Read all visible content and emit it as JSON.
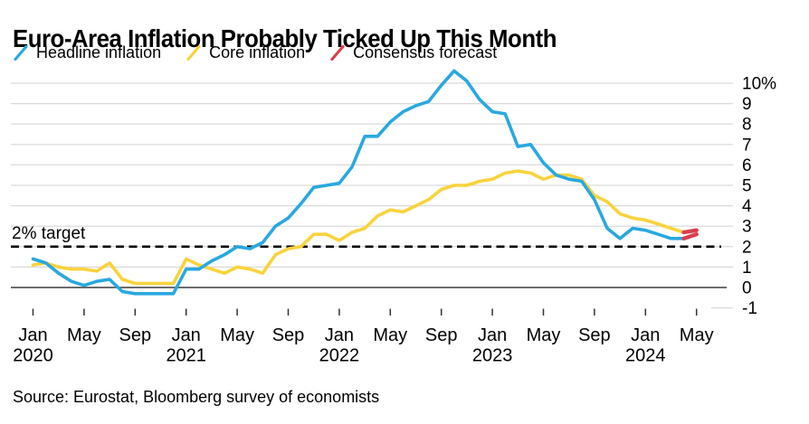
{
  "page": {
    "title": "Euro-Area Inflation Probably Ticked Up This Month",
    "source": "Source: Eurostat, Bloomberg survey of economists"
  },
  "legend": {
    "items": [
      {
        "label": "Headline inflation",
        "color": "#29A8E0"
      },
      {
        "label": "Core inflation",
        "color": "#F9D33C"
      },
      {
        "label": "Consensus forecast",
        "color": "#DB3E4D"
      }
    ]
  },
  "annotations": {
    "target_label": "2% target",
    "target_value": 2
  },
  "chart_data": {
    "type": "line",
    "title": "Euro-Area Inflation Probably Ticked Up This Month",
    "xlabel": "",
    "ylabel": "",
    "unit": "%",
    "ylim": [
      -1,
      10.6
    ],
    "grid": true,
    "legend_position": "top",
    "x_start": "Jan 2020",
    "x_end": "May 2024",
    "x_axis": {
      "ticks": [
        {
          "pos": 0,
          "month": "Jan",
          "year": "2020"
        },
        {
          "pos": 4,
          "month": "May"
        },
        {
          "pos": 8,
          "month": "Sep"
        },
        {
          "pos": 12,
          "month": "Jan",
          "year": "2021"
        },
        {
          "pos": 16,
          "month": "May"
        },
        {
          "pos": 20,
          "month": "Sep"
        },
        {
          "pos": 24,
          "month": "Jan",
          "year": "2022"
        },
        {
          "pos": 28,
          "month": "May"
        },
        {
          "pos": 32,
          "month": "Sep"
        },
        {
          "pos": 36,
          "month": "Jan",
          "year": "2023"
        },
        {
          "pos": 40,
          "month": "May"
        },
        {
          "pos": 44,
          "month": "Sep"
        },
        {
          "pos": 48,
          "month": "Jan",
          "year": "2024"
        },
        {
          "pos": 52,
          "month": "May"
        }
      ]
    },
    "y_axis": {
      "ticks": [
        {
          "value": 10,
          "label": "10%"
        },
        {
          "value": 9,
          "label": "9"
        },
        {
          "value": 8,
          "label": "8"
        },
        {
          "value": 7,
          "label": "7"
        },
        {
          "value": 6,
          "label": "6"
        },
        {
          "value": 5,
          "label": "5"
        },
        {
          "value": 4,
          "label": "4"
        },
        {
          "value": 3,
          "label": "3"
        },
        {
          "value": 2,
          "label": "2"
        },
        {
          "value": 1,
          "label": "1"
        },
        {
          "value": 0,
          "label": "0"
        },
        {
          "value": -1,
          "label": "-1"
        }
      ]
    },
    "series": [
      {
        "name": "Core inflation",
        "role": "actual",
        "color": "#F9D33C",
        "start_index": 0,
        "values": [
          1.1,
          1.2,
          1.0,
          0.9,
          0.9,
          0.8,
          1.2,
          0.4,
          0.2,
          0.2,
          0.2,
          0.2,
          1.4,
          1.1,
          0.9,
          0.7,
          1.0,
          0.9,
          0.7,
          1.6,
          1.9,
          2.0,
          2.6,
          2.6,
          2.3,
          2.7,
          2.9,
          3.5,
          3.8,
          3.7,
          4.0,
          4.3,
          4.8,
          5.0,
          5.0,
          5.2,
          5.3,
          5.6,
          5.7,
          5.6,
          5.3,
          5.5,
          5.5,
          5.3,
          4.5,
          4.2,
          3.6,
          3.4,
          3.3,
          3.1,
          2.9,
          2.7
        ]
      },
      {
        "name": "Headline inflation",
        "role": "actual",
        "color": "#29A8E0",
        "start_index": 0,
        "values": [
          1.4,
          1.2,
          0.7,
          0.3,
          0.1,
          0.3,
          0.4,
          -0.2,
          -0.3,
          -0.3,
          -0.3,
          -0.3,
          0.9,
          0.9,
          1.3,
          1.6,
          2.0,
          1.9,
          2.2,
          3.0,
          3.4,
          4.1,
          4.9,
          5.0,
          5.1,
          5.9,
          7.4,
          7.4,
          8.1,
          8.6,
          8.9,
          9.1,
          9.9,
          10.6,
          10.1,
          9.2,
          8.6,
          8.5,
          6.9,
          7.0,
          6.1,
          5.5,
          5.3,
          5.2,
          4.3,
          2.9,
          2.4,
          2.9,
          2.8,
          2.6,
          2.4,
          2.4
        ]
      },
      {
        "name": "Consensus forecast headline",
        "role": "forecast",
        "color": "#DB3E4D",
        "start_index": 51,
        "values": [
          2.4,
          2.6
        ]
      },
      {
        "name": "Consensus forecast core",
        "role": "forecast",
        "color": "#DB3E4D",
        "start_index": 51,
        "values": [
          2.7,
          2.8
        ]
      }
    ]
  }
}
